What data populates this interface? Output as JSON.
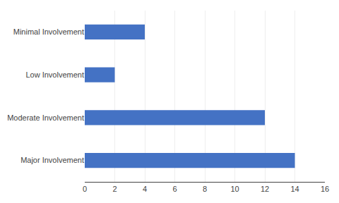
{
  "chart_data": {
    "type": "bar",
    "orientation": "horizontal",
    "categories": [
      "Major Involvement",
      "Moderate Involvement",
      "Low Involvement",
      "Minimal Involvement"
    ],
    "values": [
      14,
      12,
      2,
      4
    ],
    "color": "#4472C4",
    "xlim": [
      0,
      16
    ],
    "xticks": [
      0,
      2,
      4,
      6,
      8,
      10,
      12,
      14,
      16
    ],
    "grid": true
  }
}
